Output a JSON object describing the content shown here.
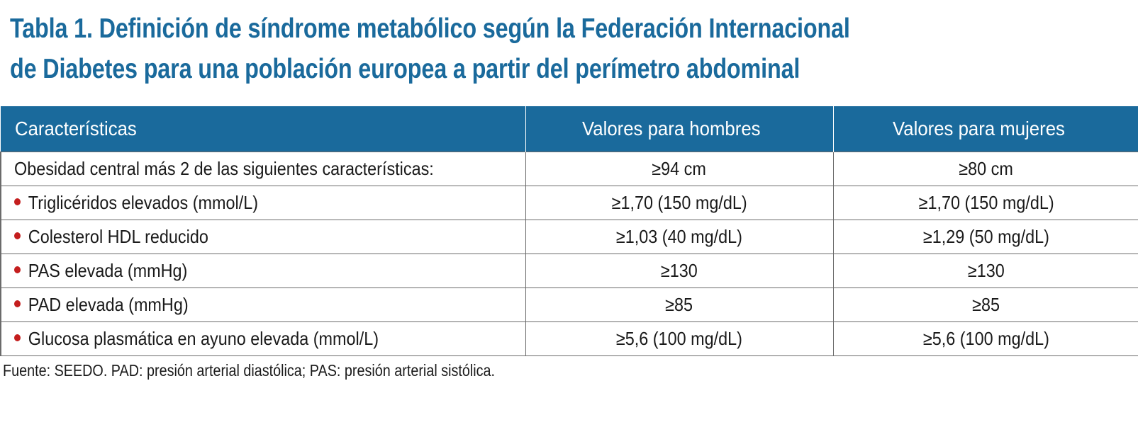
{
  "title": {
    "line1": "Tabla 1. Definición de síndrome metabólico según la Federación Internacional",
    "line2": "de Diabetes para una población europea a partir del perímetro abdominal"
  },
  "table": {
    "headers": [
      "Características",
      "Valores para hombres",
      "Valores para mujeres"
    ],
    "rows": [
      {
        "label": "Obesidad central más 2 de las siguientes características:",
        "men": "≥94 cm",
        "women": "≥80 cm",
        "bullet": false
      },
      {
        "label": "Triglicéridos elevados (mmol/L)",
        "men": "≥1,70 (150 mg/dL)",
        "women": "≥1,70 (150 mg/dL)",
        "bullet": true
      },
      {
        "label": "Colesterol HDL reducido",
        "men": "≥1,03 (40 mg/dL)",
        "women": "≥1,29 (50 mg/dL)",
        "bullet": true
      },
      {
        "label": "PAS elevada (mmHg)",
        "men": "≥130",
        "women": "≥130",
        "bullet": true
      },
      {
        "label": "PAD elevada (mmHg)",
        "men": "≥85",
        "women": "≥85",
        "bullet": true
      },
      {
        "label": "Glucosa plasmática en ayuno elevada (mmol/L)",
        "men": "≥5,6 (100 mg/dL)",
        "women": "≥5,6 (100 mg/dL)",
        "bullet": true
      }
    ]
  },
  "footnote": "Fuente: SEEDO. PAD: presión arterial diastólica; PAS: presión arterial sistólica.",
  "colors": {
    "accent": "#1a6a9c",
    "bullet": "#c41e1e",
    "border": "#6b6b6b"
  }
}
